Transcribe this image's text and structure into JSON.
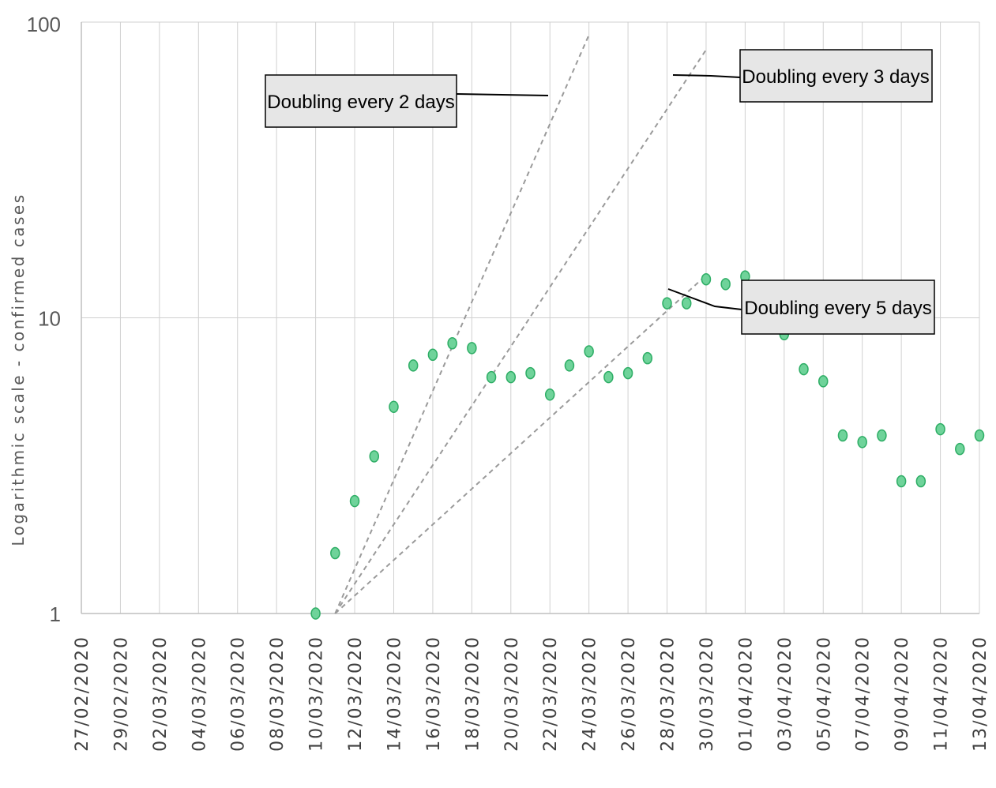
{
  "chart_data": {
    "type": "scatter",
    "title": "",
    "xlabel": "",
    "ylabel": "Logarithmic scale - confirmed cases",
    "yscale": "log",
    "ylim": [
      1,
      100
    ],
    "yticks": [
      "1",
      "10",
      "100"
    ],
    "grid": true,
    "colors": {
      "points": "#6fd39a",
      "trend_lines": "#9a9a9a",
      "callout_fill": "#e6e6e6"
    },
    "categories": [
      "27/02/2020",
      "28/02/2020",
      "29/02/2020",
      "01/03/2020",
      "02/03/2020",
      "03/03/2020",
      "04/03/2020",
      "05/03/2020",
      "06/03/2020",
      "07/03/2020",
      "08/03/2020",
      "09/03/2020",
      "10/03/2020",
      "11/03/2020",
      "12/03/2020",
      "13/03/2020",
      "14/03/2020",
      "15/03/2020",
      "16/03/2020",
      "17/03/2020",
      "18/03/2020",
      "19/03/2020",
      "20/03/2020",
      "21/03/2020",
      "22/03/2020",
      "23/03/2020",
      "24/03/2020",
      "25/03/2020",
      "26/03/2020",
      "27/03/2020",
      "28/03/2020",
      "29/03/2020",
      "30/03/2020",
      "31/03/2020",
      "01/04/2020",
      "02/04/2020",
      "03/04/2020",
      "04/04/2020",
      "05/04/2020",
      "06/04/2020",
      "07/04/2020",
      "08/04/2020",
      "09/04/2020",
      "10/04/2020",
      "11/04/2020",
      "12/04/2020",
      "13/04/2020"
    ],
    "xtick_labels": [
      "27/02/2020",
      "29/02/2020",
      "02/03/2020",
      "04/03/2020",
      "06/03/2020",
      "08/03/2020",
      "10/03/2020",
      "12/03/2020",
      "14/03/2020",
      "16/03/2020",
      "18/03/2020",
      "20/03/2020",
      "22/03/2020",
      "24/03/2020",
      "26/03/2020",
      "28/03/2020",
      "30/03/2020",
      "01/04/2020",
      "03/04/2020",
      "05/04/2020",
      "07/04/2020",
      "09/04/2020",
      "11/04/2020",
      "13/04/2020"
    ],
    "series": [
      {
        "points": [
          {
            "x": "10/03/2020",
            "y": 1.0
          },
          {
            "x": "11/03/2020",
            "y": 1.6
          },
          {
            "x": "12/03/2020",
            "y": 2.4
          },
          {
            "x": "13/03/2020",
            "y": 3.4
          },
          {
            "x": "14/03/2020",
            "y": 5.0
          },
          {
            "x": "15/03/2020",
            "y": 6.9
          },
          {
            "x": "16/03/2020",
            "y": 7.5
          },
          {
            "x": "17/03/2020",
            "y": 8.2
          },
          {
            "x": "18/03/2020",
            "y": 7.9
          },
          {
            "x": "19/03/2020",
            "y": 6.3
          },
          {
            "x": "20/03/2020",
            "y": 6.3
          },
          {
            "x": "21/03/2020",
            "y": 6.5
          },
          {
            "x": "22/03/2020",
            "y": 5.5
          },
          {
            "x": "23/03/2020",
            "y": 6.9
          },
          {
            "x": "24/03/2020",
            "y": 7.7
          },
          {
            "x": "25/03/2020",
            "y": 6.3
          },
          {
            "x": "26/03/2020",
            "y": 6.5
          },
          {
            "x": "27/03/2020",
            "y": 7.3
          },
          {
            "x": "28/03/2020",
            "y": 11.2
          },
          {
            "x": "29/03/2020",
            "y": 11.2
          },
          {
            "x": "30/03/2020",
            "y": 13.5
          },
          {
            "x": "31/03/2020",
            "y": 13.0
          },
          {
            "x": "01/04/2020",
            "y": 13.8
          },
          {
            "x": "03/04/2020",
            "y": 8.8
          },
          {
            "x": "04/04/2020",
            "y": 6.7
          },
          {
            "x": "05/04/2020",
            "y": 6.1
          },
          {
            "x": "06/04/2020",
            "y": 4.0
          },
          {
            "x": "07/04/2020",
            "y": 3.8
          },
          {
            "x": "08/04/2020",
            "y": 4.0
          },
          {
            "x": "09/04/2020",
            "y": 2.8
          },
          {
            "x": "10/04/2020",
            "y": 2.8
          },
          {
            "x": "11/04/2020",
            "y": 4.2
          },
          {
            "x": "12/04/2020",
            "y": 3.6
          },
          {
            "x": "13/04/2020",
            "y": 4.0
          }
        ]
      }
    ],
    "trend_lines": [
      {
        "label": "Doubling every 2 days",
        "start": "11/03/2020",
        "start_value": 1,
        "doubling_days": 2,
        "end": "24/03/2020"
      },
      {
        "label": "Doubling every 3 days",
        "start": "11/03/2020",
        "start_value": 1,
        "doubling_days": 3,
        "end": "30/03/2020"
      },
      {
        "label": "Doubling every 5 days",
        "start": "11/03/2020",
        "start_value": 1,
        "doubling_days": 5,
        "end": "30/03/2020"
      }
    ],
    "annotations": [
      "Doubling every 2 days",
      "Doubling every 3 days",
      "Doubling every 5 days"
    ]
  }
}
